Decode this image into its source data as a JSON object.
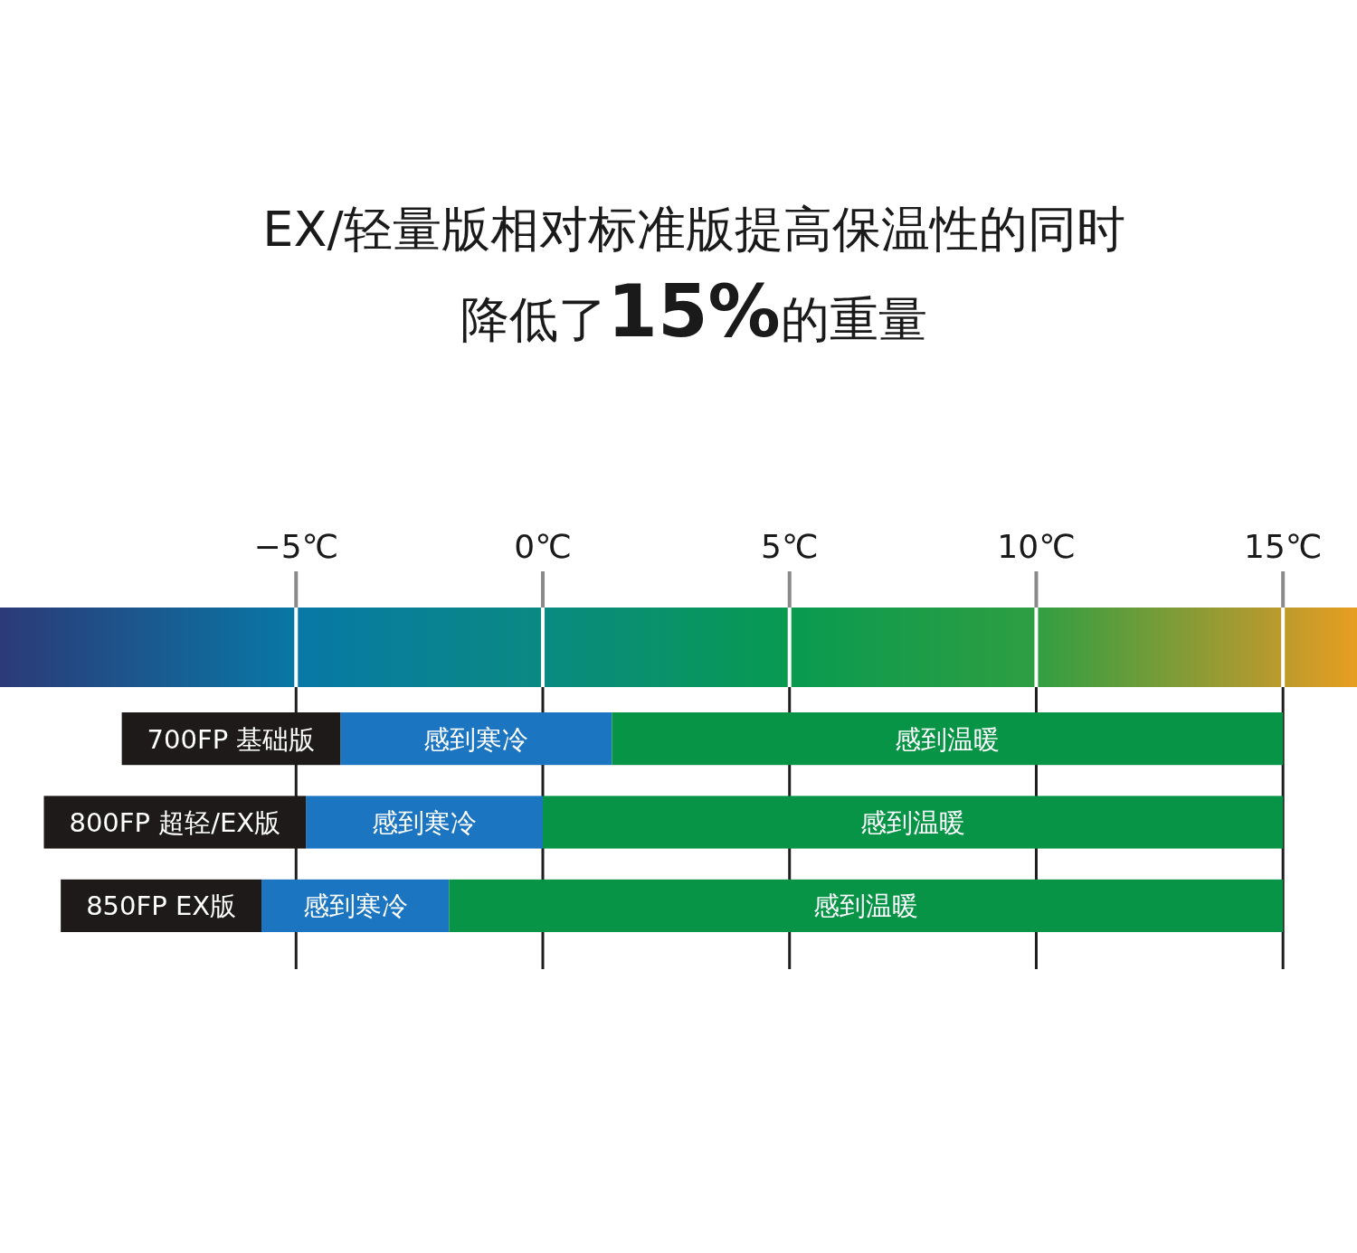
{
  "chart_data": {
    "type": "bar",
    "orientation": "horizontal",
    "title": "EX/轻量版相对标准版提高保温性的同时降低了15%的重量",
    "categories": [
      "700FP 基础版",
      "800FP 超轻/EX版",
      "850FP EX版"
    ],
    "series": [
      {
        "name": "感到寒冷",
        "color": "#1c75c0",
        "base": [
          -4.1,
          -4.8,
          -5.7
        ],
        "values": [
          5.5,
          4.8,
          3.8
        ]
      },
      {
        "name": "感到温暖",
        "color": "#079447",
        "base": [
          1.4,
          0,
          -1.9
        ],
        "values": [
          13.6,
          15,
          16.9
        ]
      }
    ],
    "xlim": [
      -11,
      16.5
    ],
    "xticks": [
      {
        "value": -5,
        "label": "−5℃"
      },
      {
        "value": 0,
        "label": "0℃"
      },
      {
        "value": 5,
        "label": "5℃"
      },
      {
        "value": 10,
        "label": "10℃"
      },
      {
        "value": 15,
        "label": "15℃"
      }
    ],
    "grid": "x"
  }
}
